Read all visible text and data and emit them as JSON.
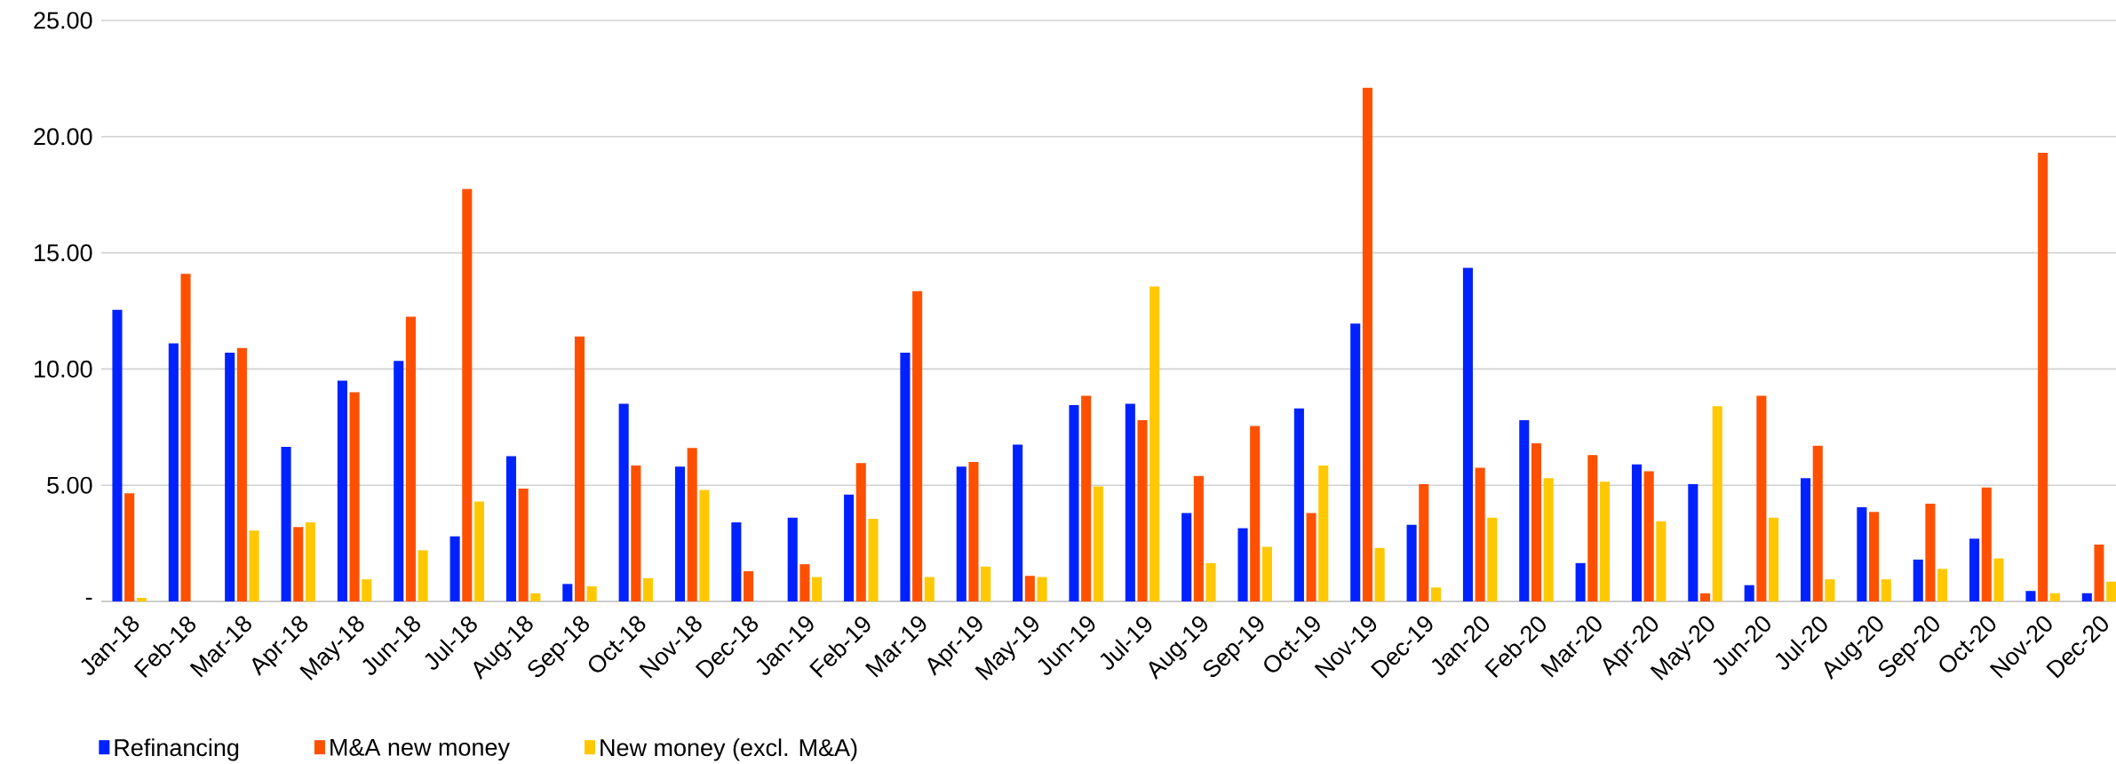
{
  "chart_data": {
    "type": "bar",
    "categories": [
      "Jan-18",
      "Feb-18",
      "Mar-18",
      "Apr-18",
      "May-18",
      "Jun-18",
      "Jul-18",
      "Aug-18",
      "Sep-18",
      "Oct-18",
      "Nov-18",
      "Dec-18",
      "Jan-19",
      "Feb-19",
      "Mar-19",
      "Apr-19",
      "May-19",
      "Jun-19",
      "Jul-19",
      "Aug-19",
      "Sep-19",
      "Oct-19",
      "Nov-19",
      "Dec-19",
      "Jan-20",
      "Feb-20",
      "Mar-20",
      "Apr-20",
      "May-20",
      "Jun-20",
      "Jul-20",
      "Aug-20",
      "Sep-20",
      "Oct-20",
      "Nov-20",
      "Dec-20"
    ],
    "series": [
      {
        "name": "Refinancing",
        "color": "#0022ff",
        "values": [
          12.55,
          11.1,
          10.7,
          6.65,
          9.5,
          10.35,
          2.8,
          6.25,
          0.75,
          8.5,
          5.8,
          3.4,
          3.6,
          4.6,
          10.7,
          5.8,
          6.75,
          8.45,
          8.5,
          3.8,
          3.15,
          8.3,
          11.95,
          3.3,
          14.35,
          7.8,
          1.65,
          5.9,
          5.05,
          0.7,
          5.3,
          4.05,
          1.8,
          2.7,
          0.45,
          0.35
        ]
      },
      {
        "name": "M&A new money",
        "color": "#ff5000",
        "values": [
          4.65,
          14.1,
          10.9,
          3.2,
          9.0,
          12.25,
          17.75,
          4.85,
          11.4,
          5.85,
          6.6,
          1.3,
          1.6,
          5.95,
          13.35,
          6.0,
          1.1,
          8.85,
          7.8,
          5.4,
          7.55,
          3.8,
          22.1,
          5.05,
          5.75,
          6.8,
          6.3,
          5.6,
          0.35,
          8.85,
          6.7,
          3.85,
          4.2,
          4.9,
          19.3,
          2.45
        ]
      },
      {
        "name": "New money (excl. M&A)",
        "color": "#ffc800",
        "values": [
          0.15,
          0,
          3.05,
          3.4,
          0.95,
          2.2,
          4.3,
          0.35,
          0.65,
          1.0,
          4.8,
          0,
          1.05,
          3.55,
          1.05,
          1.5,
          1.05,
          4.95,
          13.55,
          1.65,
          2.35,
          5.85,
          2.3,
          0.6,
          3.6,
          5.3,
          5.15,
          3.45,
          8.4,
          3.6,
          0.95,
          0.95,
          1.4,
          1.85,
          0.35,
          0.85
        ]
      }
    ],
    "ylim": [
      0,
      25
    ],
    "yticks": [
      {
        "value": 0,
        "label": "-"
      },
      {
        "value": 5,
        "label": "5.00"
      },
      {
        "value": 10,
        "label": "10.00"
      },
      {
        "value": 15,
        "label": "15.00"
      },
      {
        "value": 20,
        "label": "20.00"
      },
      {
        "value": 25,
        "label": "25.00"
      }
    ],
    "grid": "y",
    "legend": "bottom left"
  }
}
